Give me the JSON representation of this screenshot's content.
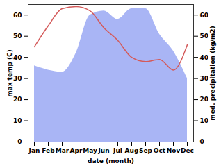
{
  "chart_data": {
    "type": "line",
    "x_label": "date (month)",
    "y_label": "max temp (C)",
    "y2_label": "med. precipitation (kg/m2)",
    "categories": [
      "Jan",
      "Feb",
      "Mar",
      "Apr",
      "May",
      "Jun",
      "Jul",
      "Aug",
      "Sep",
      "Oct",
      "Nov",
      "Dec"
    ],
    "ylim": [
      0,
      65
    ],
    "yticks": [
      0,
      10,
      20,
      30,
      40,
      50,
      60
    ],
    "y2lim": [
      0,
      65
    ],
    "y2ticks": [
      0,
      10,
      20,
      30,
      40,
      50,
      60
    ],
    "grid": false,
    "series": [
      {
        "name": "max temp (C)",
        "type": "line",
        "color": "#d45a5a",
        "values": [
          45,
          55,
          63,
          64,
          62,
          54,
          48,
          40,
          38,
          39,
          34,
          46
        ]
      },
      {
        "name": "med. precipitation (kg/m2)",
        "type": "area",
        "axis": "y2",
        "color": "#a9b5f5",
        "values": [
          36,
          34,
          33,
          42,
          60,
          62,
          58,
          63,
          63,
          51,
          43,
          30
        ]
      }
    ]
  }
}
